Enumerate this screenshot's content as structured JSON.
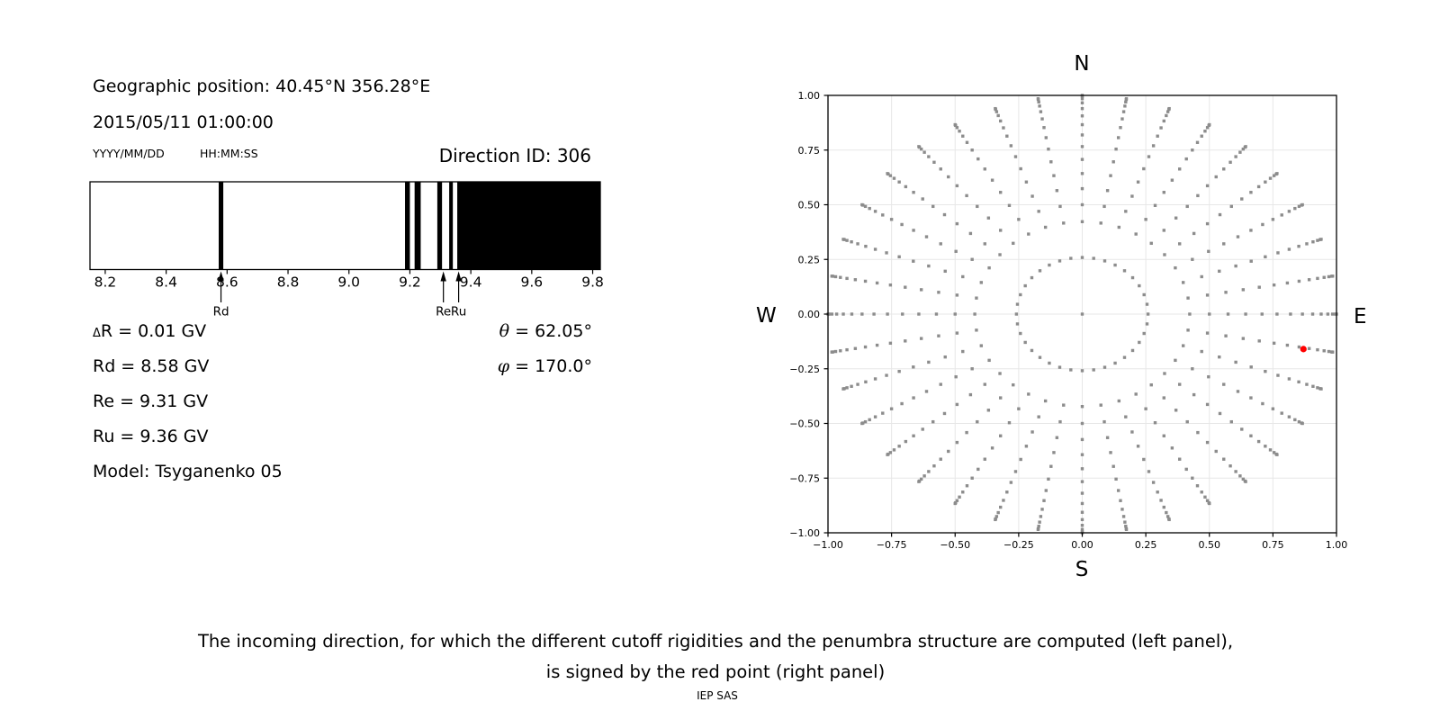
{
  "header": {
    "geo_position": "Geographic position: 40.45°N 356.28°E",
    "datetime": "2015/05/11 01:00:00",
    "date_format": "YYYY/MM/DD",
    "time_format": "HH:MM:SS",
    "direction_id": "Direction ID: 306"
  },
  "left_panel": {
    "delta_symbol": "Δ",
    "delta_rest": "R = 0.01 GV",
    "rows": [
      "Rd = 8.58 GV",
      "Re = 9.31 GV",
      "Ru = 9.36 GV",
      "Model: Tsyganenko 05"
    ],
    "theta_symbol": "θ",
    "theta_rest": " = 62.05°",
    "phi_symbol": "φ",
    "phi_rest": " = 170.0°"
  },
  "chart_data": [
    {
      "id": "penumbra-strip",
      "type": "bar",
      "description": "Penumbra structure: black bands are forbidden rigidity ranges (GV)",
      "xlim": [
        8.15,
        9.825
      ],
      "xticks": [
        8.2,
        8.4,
        8.6,
        8.8,
        9.0,
        9.2,
        9.4,
        9.6,
        9.8
      ],
      "xtick_labels": [
        "8.2",
        "8.4",
        "8.6",
        "8.8",
        "9.0",
        "9.2",
        "9.4",
        "9.6",
        "9.8"
      ],
      "forbidden_bands_gv": [
        [
          8.5725,
          8.5875
        ],
        [
          9.184,
          9.2
        ],
        [
          9.2155,
          9.2355
        ],
        [
          9.29,
          9.3055
        ],
        [
          9.329,
          9.341
        ],
        [
          9.3555,
          9.825
        ]
      ],
      "markers": [
        {
          "label": "Rd",
          "value_gv": 8.58
        },
        {
          "label": "Re",
          "value_gv": 9.31
        },
        {
          "label": "Ru",
          "value_gv": 9.36
        }
      ]
    },
    {
      "id": "direction-map",
      "type": "scatter",
      "xlim": [
        -1,
        1
      ],
      "ylim": [
        -1,
        1
      ],
      "grid": true,
      "xticks": [
        -1,
        -0.75,
        -0.5,
        -0.25,
        0,
        0.25,
        0.5,
        0.75,
        1
      ],
      "yticks": [
        1,
        0.75,
        0.5,
        0.25,
        0,
        -0.25,
        -0.5,
        -0.75,
        -1
      ],
      "xtick_labels": [
        "−1.00",
        "−0.75",
        "−0.50",
        "−0.25",
        "0.00",
        "0.25",
        "0.50",
        "0.75",
        "1.00"
      ],
      "ytick_labels": [
        "1.00",
        "0.75",
        "0.50",
        "0.25",
        "0.00",
        "−0.25",
        "−0.50",
        "−0.75",
        "−1.00"
      ],
      "compass": {
        "top": "N",
        "right": "E",
        "bottom": "S",
        "left": "W"
      },
      "direction_grid": {
        "azimuth_start_deg": 0,
        "azimuth_step_deg": 10,
        "azimuth_count": 36,
        "zenith_deg": [
          15,
          25,
          30,
          35,
          40,
          45,
          50,
          55,
          60,
          65,
          70,
          75,
          80,
          85,
          90
        ],
        "radius_rule": "r = sin(zenith)",
        "includes_center_point": true
      },
      "selected_direction": {
        "x": 0.87,
        "y": -0.16,
        "zenith_deg": 62.05,
        "azimuth_deg": 170.0
      }
    }
  ],
  "caption": {
    "line1": "The incoming direction, for which the different cutoff rigidities and the penumbra structure are computed (left panel),",
    "line2": "is signed by the red point (right panel)",
    "credit": "IEP SAS"
  },
  "colors": {
    "dot": "#8c8c8c",
    "selected": "#ff0000",
    "grid": "#e7e7e7",
    "band": "#000000",
    "ink": "#000000"
  }
}
